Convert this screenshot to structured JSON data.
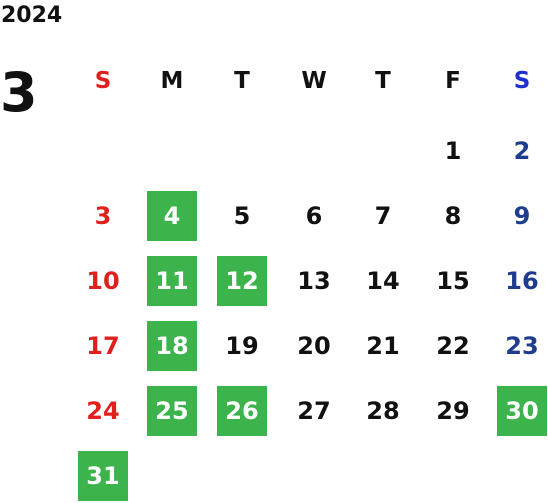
{
  "year": "2024",
  "month": "3",
  "weekdays": [
    "S",
    "M",
    "T",
    "W",
    "T",
    "F",
    "S"
  ],
  "weeks": [
    [
      null,
      null,
      null,
      null,
      null,
      {
        "day": "1"
      },
      {
        "day": "2"
      }
    ],
    [
      {
        "day": "3"
      },
      {
        "day": "4",
        "highlighted": true
      },
      {
        "day": "5"
      },
      {
        "day": "6"
      },
      {
        "day": "7"
      },
      {
        "day": "8"
      },
      {
        "day": "9"
      }
    ],
    [
      {
        "day": "10"
      },
      {
        "day": "11",
        "highlighted": true
      },
      {
        "day": "12",
        "highlighted": true
      },
      {
        "day": "13"
      },
      {
        "day": "14"
      },
      {
        "day": "15"
      },
      {
        "day": "16"
      }
    ],
    [
      {
        "day": "17"
      },
      {
        "day": "18",
        "highlighted": true
      },
      {
        "day": "19"
      },
      {
        "day": "20"
      },
      {
        "day": "21"
      },
      {
        "day": "22"
      },
      {
        "day": "23"
      }
    ],
    [
      {
        "day": "24"
      },
      {
        "day": "25",
        "highlighted": true
      },
      {
        "day": "26",
        "highlighted": true
      },
      {
        "day": "27"
      },
      {
        "day": "28"
      },
      {
        "day": "29"
      },
      {
        "day": "30",
        "highlighted": true
      }
    ],
    [
      {
        "day": "31",
        "highlighted": true
      }
    ]
  ]
}
